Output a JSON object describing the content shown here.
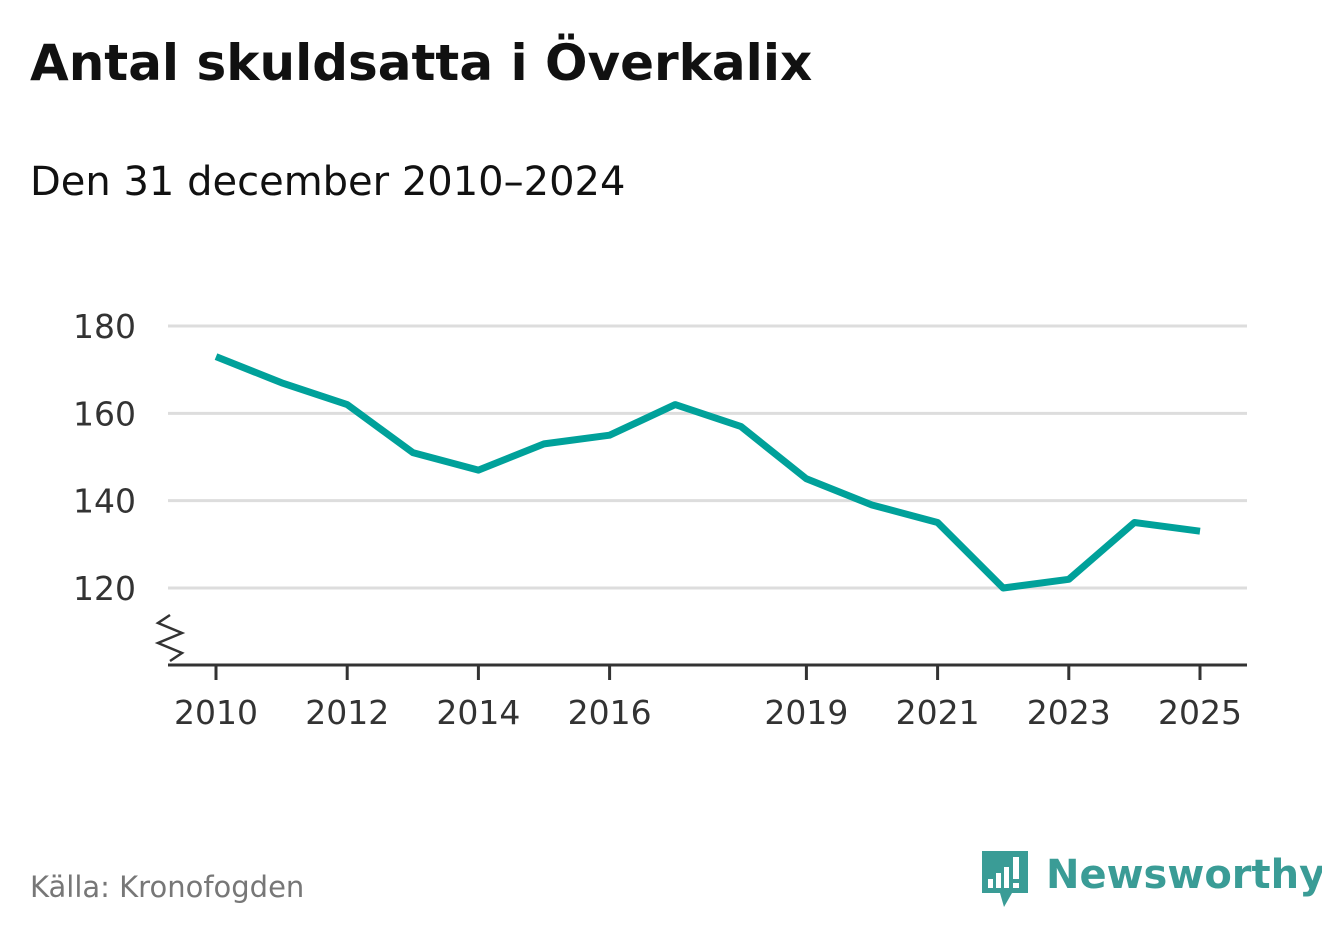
{
  "header": {
    "title": "Antal skuldsatta i Överkalix",
    "subtitle": "Den 31 december 2010–2024"
  },
  "footer": {
    "source": "Källa: Kronofogden",
    "brand": "Newsworthy"
  },
  "colors": {
    "line": "#00a19a",
    "grid": "#dddddd",
    "axis": "#333333",
    "brand": "#3a9c96"
  },
  "chart_data": {
    "type": "line",
    "title": "Antal skuldsatta i Överkalix",
    "subtitle": "Den 31 december 2010–2024",
    "xlabel": "",
    "ylabel": "",
    "x": [
      2010,
      2011,
      2012,
      2013,
      2014,
      2015,
      2016,
      2017,
      2018,
      2019,
      2020,
      2021,
      2022,
      2023,
      2024,
      2025
    ],
    "series": [
      {
        "name": "Antal skuldsatta",
        "values": [
          173,
          167,
          162,
          151,
          147,
          153,
          155,
          162,
          157,
          145,
          139,
          135,
          120,
          122,
          135,
          133
        ]
      }
    ],
    "yticks": [
      180,
      160,
      140,
      120
    ],
    "ytick_labels": [
      "180",
      "160",
      "140",
      "120"
    ],
    "xticks": [
      2010,
      2012,
      2014,
      2016,
      2019,
      2021,
      2023,
      2025
    ],
    "xtick_labels": [
      "2010",
      "2012",
      "2014",
      "2016",
      "2019",
      "2021",
      "2023",
      "2025"
    ],
    "xlim": [
      2010,
      2025
    ],
    "ylim": [
      103,
      180
    ],
    "axis_break": true,
    "grid": true,
    "legend": "none"
  }
}
